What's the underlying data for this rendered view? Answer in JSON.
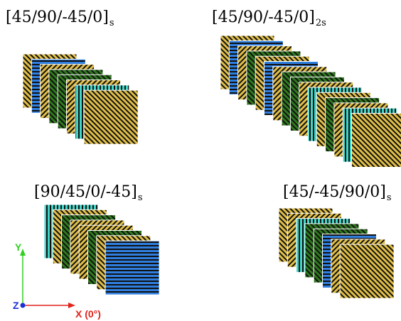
{
  "colors": {
    "0": "#2f7a1e",
    "45": "#e0be48",
    "-45": "#e0be48",
    "90_cyan": "#3fd6c8",
    "90_blue": "#2f7fe0",
    "stripe": "#111111",
    "x_axis": "#e0241b",
    "y_axis": "#30d020",
    "z_axis": "#1b2fd8"
  },
  "diagrams": [
    {
      "title_main": "[45/90/-45/0]",
      "title_sub": "s",
      "plies": [
        45,
        90,
        -45,
        0,
        0,
        -45,
        90,
        45
      ]
    },
    {
      "title_main": "[45/90/-45/0]",
      "title_sub": "2s",
      "plies": [
        45,
        90,
        -45,
        0,
        45,
        90,
        -45,
        0,
        0,
        -45,
        90,
        45,
        0,
        -45,
        90,
        45
      ]
    },
    {
      "title_main": "[90/45/0/-45]",
      "title_sub": "s",
      "plies": [
        90,
        45,
        0,
        -45,
        -45,
        0,
        45,
        90
      ]
    },
    {
      "title_main": "[45/-45/90/0]",
      "title_sub": "s",
      "plies": [
        45,
        -45,
        90,
        0,
        0,
        90,
        -45,
        45
      ]
    }
  ],
  "axes": {
    "x_label": "X (0°)",
    "y_label": "Y",
    "z_label": "Z"
  }
}
